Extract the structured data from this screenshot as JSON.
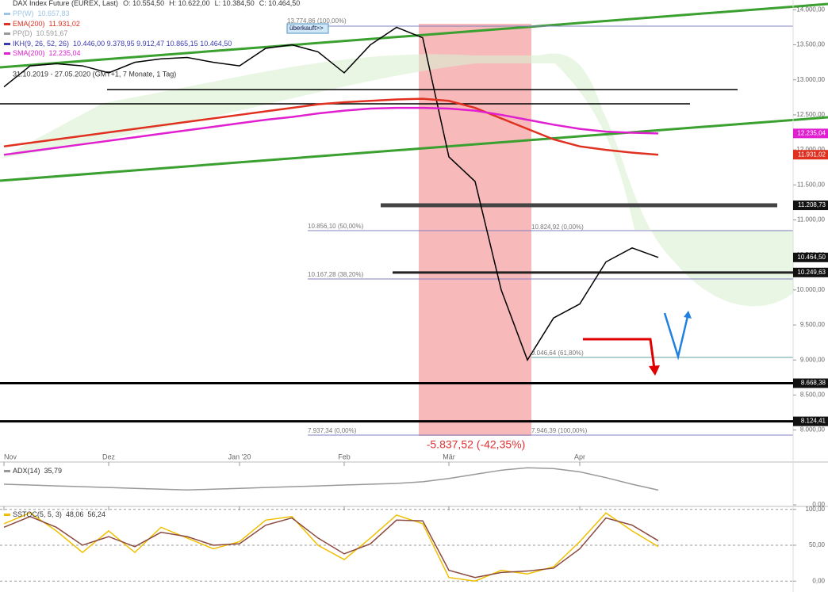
{
  "chart_data": [
    {
      "type": "line",
      "header_stats": [
        "O: 10.554,50",
        "H: 10.622,00",
        "L: 10.384,50",
        "C: 10.464,50"
      ],
      "indicator_legend": [
        {
          "label": "PP(W)",
          "value": "10.657,83",
          "color": "#9cc4e4"
        },
        {
          "label": "PP(D)",
          "value": "10.591,67",
          "color": "#999999"
        },
        {
          "label": "IKH(9, 26, 52, 26)",
          "value": "10.446,00  9.378,95  9.912,47  10.865,15  10.464,50",
          "color": "#3a3ab0"
        }
      ],
      "date_range": "31.10.2019 - 27.05.2020 (GMT+1, 7 Monate, 1 Tag)",
      "categories": [
        "Nov",
        null,
        null,
        null,
        "Dez",
        null,
        null,
        null,
        null,
        "Jan '20",
        null,
        null,
        null,
        "Feb",
        null,
        null,
        null,
        "Mär",
        null,
        null,
        null,
        null,
        "Apr",
        null,
        null,
        null,
        null,
        null,
        null,
        null
      ],
      "series": [
        {
          "name": "DAX Index Future (EUREX, Last)",
          "color": "#000000",
          "values": [
            12900,
            13200,
            13230,
            13200,
            13100,
            13250,
            13300,
            13320,
            13250,
            13200,
            13450,
            13500,
            13400,
            13100,
            13500,
            13750,
            13600,
            11900,
            11550,
            10000,
            9000,
            9600,
            9800,
            10400,
            10600,
            10464.5,
            null,
            null,
            null,
            null
          ]
        },
        {
          "name": "EMA(200)",
          "color": "#e03020",
          "value_label": "11.931,02",
          "values": [
            12050,
            12100,
            12150,
            12200,
            12250,
            12300,
            12350,
            12400,
            12450,
            12500,
            12550,
            12600,
            12650,
            12680,
            12700,
            12720,
            12730,
            12700,
            12600,
            12450,
            12300,
            12150,
            12050,
            12000,
            11960,
            11931.02,
            null,
            null,
            null,
            null
          ]
        },
        {
          "name": "SMA(200)",
          "color": "#e020d0",
          "value_label": "12.235,04",
          "values": [
            11930,
            11980,
            12030,
            12080,
            12130,
            12180,
            12230,
            12280,
            12330,
            12380,
            12430,
            12470,
            12520,
            12560,
            12590,
            12600,
            12600,
            12590,
            12560,
            12500,
            12430,
            12360,
            12300,
            12260,
            12245,
            12235.04,
            null,
            null,
            null,
            null
          ]
        }
      ],
      "levels": [
        {
          "value": 11208.73,
          "label": "11.208,73"
        },
        {
          "value": 10249.63,
          "label": "10.249,63"
        },
        {
          "value": 8668.38,
          "label": "8.668,38"
        },
        {
          "value": 8124.41,
          "label": "8.124,41"
        }
      ],
      "last_label": "10.464,50",
      "annotations": [
        "13.774,86 (100,00%)",
        "10.856,10 (50,00%)",
        "10.167,28 (38,20%)",
        "9.046,64 (61,80%)",
        "7.937,34 (0,00%)",
        "10.824,92 (0,00%)",
        "7.946,39 (100,00%)",
        "-5.837,52 (-42,35%)",
        "überkauft>>"
      ],
      "ylim": [
        7860,
        14140
      ],
      "yticks": [
        {
          "value": 14000,
          "label": "14.000,00"
        },
        {
          "value": 13500,
          "label": "13.500,00"
        },
        {
          "value": 13000,
          "label": "13.000,00"
        },
        {
          "value": 12500,
          "label": "12.500,00"
        },
        {
          "value": 12000,
          "label": "12.000,00"
        },
        {
          "value": 11500,
          "label": "11.500,00"
        },
        {
          "value": 11000,
          "label": "11.000,00"
        },
        {
          "value": 10500,
          "label": "10.500,00"
        },
        {
          "value": 10000,
          "label": "10.000,00"
        },
        {
          "value": 9500,
          "label": "9.500,00"
        },
        {
          "value": 9000,
          "label": "9.000,00"
        },
        {
          "value": 8500,
          "label": "8.500,00"
        },
        {
          "value": 8000,
          "label": "8.000,00"
        }
      ],
      "grid": false
    },
    {
      "type": "line",
      "series": [
        {
          "name": "ADX(14)",
          "color": "#999999",
          "value_label": "35,79",
          "values": [
            50,
            48,
            46,
            44,
            42,
            40,
            38,
            36,
            38,
            40,
            42,
            44,
            46,
            48,
            50,
            52,
            56,
            64,
            74,
            84,
            90,
            88,
            80,
            66,
            50,
            35.79,
            null,
            null,
            null,
            null
          ]
        }
      ],
      "ylim": [
        0,
        100
      ],
      "yticks": [
        {
          "value": 0,
          "label": "0,00"
        }
      ],
      "grid": false
    },
    {
      "type": "line",
      "series": [
        {
          "name": "SSTOC(5, 5, 3)",
          "color": "#f0c000",
          "value_label": "48,06",
          "values": [
            80,
            95,
            70,
            40,
            70,
            40,
            75,
            60,
            45,
            55,
            85,
            90,
            50,
            30,
            60,
            92,
            80,
            5,
            0,
            15,
            10,
            20,
            55,
            95,
            70,
            48.06,
            null,
            null,
            null,
            null
          ]
        },
        {
          "color": "#8b4a40",
          "value_label": "56,24",
          "values": [
            75,
            90,
            75,
            50,
            62,
            48,
            68,
            62,
            50,
            52,
            78,
            88,
            60,
            38,
            52,
            85,
            84,
            15,
            5,
            12,
            14,
            18,
            45,
            88,
            78,
            56.24,
            null,
            null,
            null,
            null
          ]
        }
      ],
      "ylim": [
        -13,
        103
      ],
      "yticks": [
        {
          "value": 100,
          "label": "100,00"
        },
        {
          "value": 50,
          "label": "50,00"
        },
        {
          "value": 0,
          "label": "0,00"
        }
      ],
      "grid": true
    }
  ]
}
